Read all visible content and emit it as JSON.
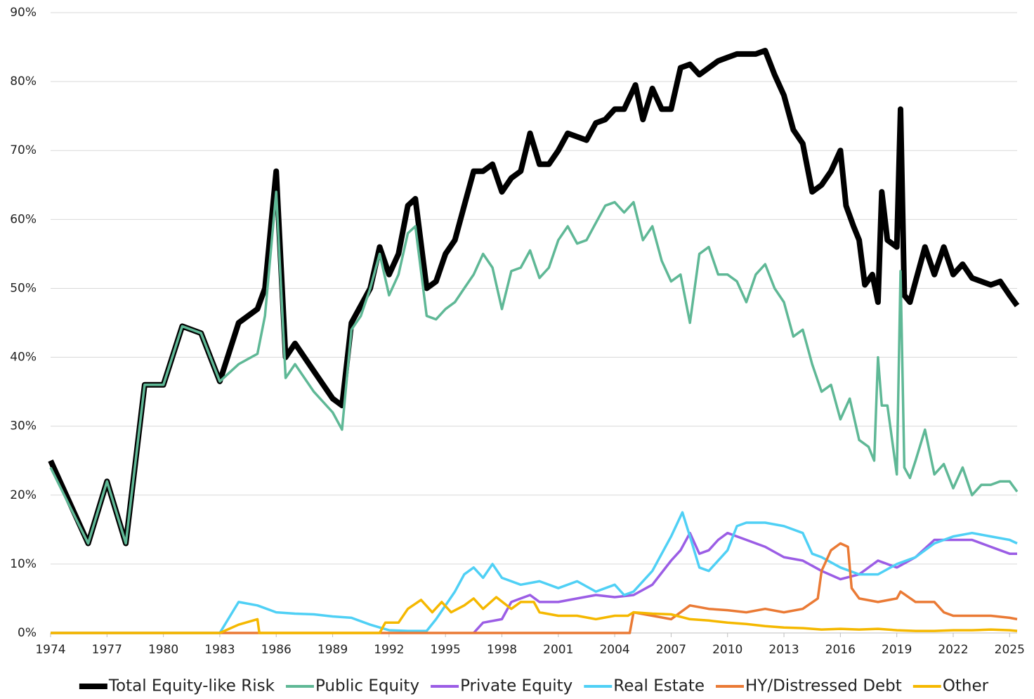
{
  "chart_data": {
    "type": "line",
    "xlim": [
      1974,
      2025.4
    ],
    "xticks": [
      1974,
      1977,
      1980,
      1983,
      1986,
      1989,
      1992,
      1995,
      1998,
      2001,
      2004,
      2007,
      2010,
      2013,
      2016,
      2019,
      2022,
      2025
    ],
    "ylim": [
      0,
      90
    ],
    "yticks": [
      {
        "value": 0,
        "label": "0%"
      },
      {
        "value": 10,
        "label": "10%"
      },
      {
        "value": 20,
        "label": "20%"
      },
      {
        "value": 30,
        "label": "30%"
      },
      {
        "value": 40,
        "label": "40%"
      },
      {
        "value": 50,
        "label": "50%"
      },
      {
        "value": 60,
        "label": "60%"
      },
      {
        "value": 70,
        "label": "70%"
      },
      {
        "value": 80,
        "label": "80%"
      },
      {
        "value": 90,
        "label": "90%"
      }
    ],
    "grid": true,
    "legend": "bottom",
    "series": [
      {
        "name": "Total Equity-like Risk",
        "color": "#000000",
        "x": [
          1974,
          1976,
          1977,
          1978,
          1979,
          1980,
          1981,
          1982,
          1983,
          1984,
          1985,
          1985.4,
          1986,
          1986.5,
          1987,
          1988,
          1989,
          1989.5,
          1990,
          1990.5,
          1991,
          1991.5,
          1992,
          1992.5,
          1993,
          1993.4,
          1994,
          1994.5,
          1995,
          1995.5,
          1996,
          1996.5,
          1997,
          1997.5,
          1998,
          1998.5,
          1999,
          1999.5,
          2000,
          2000.5,
          2001,
          2001.5,
          2002,
          2002.5,
          2003,
          2003.5,
          2004,
          2004.5,
          2005.1,
          2005.5,
          2006,
          2006.5,
          2007,
          2007.5,
          2008,
          2008.5,
          2009,
          2009.5,
          2010,
          2010.5,
          2011,
          2011.5,
          2012,
          2012.5,
          2013,
          2013.5,
          2014,
          2014.5,
          2015,
          2015.5,
          2016,
          2016.3,
          2016.7,
          2017,
          2017.3,
          2017.7,
          2018,
          2018.2,
          2018.5,
          2019,
          2019.2,
          2019.4,
          2019.7,
          2020,
          2020.5,
          2021,
          2021.5,
          2022,
          2022.5,
          2023,
          2023.5,
          2024,
          2024.5,
          2025,
          2025.4
        ],
        "values": [
          25,
          13,
          22,
          13,
          36,
          36,
          44.5,
          43.5,
          36.5,
          45,
          47,
          50,
          67,
          40,
          42,
          38,
          34,
          33,
          45,
          47.5,
          50,
          56,
          52,
          55,
          62,
          63,
          50,
          51,
          55,
          57,
          62,
          67,
          67,
          68,
          64,
          66,
          67,
          72.5,
          68,
          68,
          70,
          72.5,
          72,
          71.5,
          74,
          74.5,
          76,
          76,
          79.5,
          74.5,
          79,
          76,
          76,
          82,
          82.5,
          81,
          82,
          83,
          83.5,
          84,
          84,
          84,
          84.5,
          81,
          78,
          73,
          71,
          64,
          65,
          67,
          70,
          62,
          59,
          57,
          50.5,
          52,
          48,
          64,
          57,
          56,
          76,
          49,
          48,
          51,
          56,
          52,
          56,
          52,
          53.5,
          51.5,
          51,
          50.5,
          51,
          49,
          47.5
        ]
      },
      {
        "name": "Public Equity",
        "color": "#5fb896",
        "x": [
          1974,
          1976,
          1977,
          1978,
          1979,
          1980,
          1981,
          1982,
          1983,
          1984,
          1985,
          1985.4,
          1986,
          1986.5,
          1987,
          1988,
          1989,
          1989.5,
          1990,
          1990.5,
          1991,
          1991.5,
          1992,
          1992.5,
          1993,
          1993.4,
          1994,
          1994.5,
          1995,
          1995.5,
          1996,
          1996.5,
          1997,
          1997.5,
          1998,
          1998.5,
          1999,
          1999.5,
          2000,
          2000.5,
          2001,
          2001.5,
          2002,
          2002.5,
          2003,
          2003.5,
          2004,
          2004.5,
          2005,
          2005.5,
          2006,
          2006.5,
          2007,
          2007.5,
          2008,
          2008.5,
          2009,
          2009.5,
          2010,
          2010.5,
          2011,
          2011.5,
          2012,
          2012.5,
          2013,
          2013.5,
          2014,
          2014.5,
          2015,
          2015.5,
          2016,
          2016.5,
          2017,
          2017.5,
          2017.8,
          2018,
          2018.2,
          2018.5,
          2019,
          2019.2,
          2019.4,
          2019.7,
          2020,
          2020.5,
          2021,
          2021.5,
          2022,
          2022.5,
          2023,
          2023.5,
          2024,
          2024.5,
          2025,
          2025.4
        ],
        "values": [
          24,
          13,
          22,
          13,
          36,
          36,
          44.5,
          43.5,
          36.5,
          39,
          40.5,
          46,
          64,
          37,
          39,
          35,
          32,
          29.5,
          44,
          46,
          50,
          55,
          49,
          52,
          58,
          59,
          46,
          45.5,
          47,
          48,
          50,
          52,
          55,
          53,
          47,
          52.5,
          53,
          55.5,
          51.5,
          53,
          57,
          59,
          56.5,
          57,
          59.5,
          62,
          62.5,
          61,
          62.5,
          57,
          59,
          54,
          51,
          52,
          45,
          55,
          56,
          52,
          52,
          51,
          48,
          52,
          53.5,
          50,
          48,
          43,
          44,
          39,
          35,
          36,
          31,
          34,
          28,
          27,
          25,
          40,
          33,
          33,
          23,
          52.5,
          24,
          22.5,
          25,
          29.5,
          23,
          24.5,
          21,
          24,
          20,
          21.5,
          21.5,
          22,
          22,
          20.5
        ]
      },
      {
        "name": "Private Equity",
        "color": "#9b5de5",
        "x": [
          1996.5,
          1997,
          1998,
          1998.5,
          1999,
          1999.5,
          2000,
          2001,
          2002,
          2003,
          2004,
          2005,
          2006,
          2007,
          2007.5,
          2008,
          2008.5,
          2009,
          2009.5,
          2010,
          2011,
          2012,
          2013,
          2014,
          2015,
          2016,
          2017,
          2018,
          2019,
          2020,
          2021,
          2022,
          2023,
          2024,
          2025,
          2025.4
        ],
        "values": [
          0,
          1.5,
          2,
          4.5,
          5,
          5.5,
          4.5,
          4.5,
          5,
          5.5,
          5.2,
          5.5,
          7,
          10.5,
          12,
          14.5,
          11.5,
          12,
          13.5,
          14.5,
          13.5,
          12.5,
          11,
          10.5,
          9,
          7.8,
          8.5,
          10.5,
          9.5,
          11,
          13.5,
          13.5,
          13.5,
          12.5,
          11.5,
          11.5
        ]
      },
      {
        "name": "Real Estate",
        "color": "#4fd0f5",
        "x": [
          1974,
          1983,
          1984,
          1985,
          1986,
          1987,
          1988,
          1989,
          1990,
          1991,
          1991.5,
          1992,
          1993,
          1994,
          1994.5,
          1995,
          1995.5,
          1996,
          1996.5,
          1997,
          1997.5,
          1998,
          1999,
          2000,
          2001,
          2002,
          2003,
          2004,
          2004.5,
          2005,
          2006,
          2007,
          2007.6,
          2008,
          2008.5,
          2009,
          2010,
          2010.5,
          2011,
          2012,
          2013,
          2014,
          2014.5,
          2015,
          2016,
          2017,
          2018,
          2019,
          2020,
          2021,
          2022,
          2023,
          2024,
          2025,
          2025.4
        ],
        "values": [
          0,
          0,
          4.5,
          4,
          3,
          2.8,
          2.7,
          2.4,
          2.2,
          1.2,
          0.8,
          0.4,
          0.3,
          0.3,
          2,
          4,
          6,
          8.5,
          9.5,
          8,
          10,
          8,
          7,
          7.5,
          6.5,
          7.5,
          6,
          7,
          5.5,
          6,
          9,
          14,
          17.5,
          14,
          9.5,
          9,
          12,
          15.5,
          16,
          16,
          15.5,
          14.5,
          11.5,
          11,
          9.5,
          8.5,
          8.5,
          10,
          11,
          13,
          14,
          14.5,
          14,
          13.5,
          13
        ]
      },
      {
        "name": "HY/Distressed Debt",
        "color": "#ea7a35",
        "x": [
          1974,
          2004.8,
          2005,
          2006,
          2007,
          2007.5,
          2008,
          2009,
          2010,
          2011,
          2012,
          2013,
          2014,
          2014.8,
          2015,
          2015.5,
          2016,
          2016.4,
          2016.6,
          2017,
          2018,
          2019,
          2019.2,
          2020,
          2021,
          2021.5,
          2022,
          2023,
          2024,
          2025,
          2025.4
        ],
        "values": [
          0,
          0,
          3,
          2.5,
          2,
          3,
          4,
          3.5,
          3.3,
          3,
          3.5,
          3,
          3.5,
          5,
          9,
          12,
          13,
          12.5,
          6.5,
          5,
          4.5,
          5,
          6,
          4.5,
          4.5,
          3,
          2.5,
          2.5,
          2.5,
          2.2,
          2
        ]
      },
      {
        "name": "Other",
        "color": "#f5b800",
        "x": [
          1974,
          1983,
          1984,
          1985,
          1985.1,
          1991.5,
          1991.8,
          1992.5,
          1993,
          1993.7,
          1994.3,
          1994.8,
          1995.3,
          1996,
          1996.5,
          1997,
          1997.7,
          1998.5,
          1999,
          1999.7,
          2000,
          2001,
          2002,
          2003,
          2004,
          2004.7,
          2005,
          2006,
          2007,
          2008,
          2009,
          2010,
          2011,
          2012,
          2013,
          2014,
          2015,
          2016,
          2017,
          2018,
          2019,
          2020,
          2021,
          2022,
          2023,
          2024,
          2025,
          2025.4
        ],
        "values": [
          0,
          0,
          1.2,
          2,
          0,
          0,
          1.5,
          1.5,
          3.5,
          4.8,
          3,
          4.5,
          3,
          4,
          5,
          3.5,
          5.2,
          3.5,
          4.5,
          4.5,
          3,
          2.5,
          2.5,
          2,
          2.5,
          2.5,
          3,
          2.8,
          2.7,
          2,
          1.8,
          1.5,
          1.3,
          1,
          0.8,
          0.7,
          0.5,
          0.6,
          0.5,
          0.6,
          0.4,
          0.3,
          0.3,
          0.4,
          0.4,
          0.5,
          0.4,
          0.3
        ]
      }
    ]
  }
}
